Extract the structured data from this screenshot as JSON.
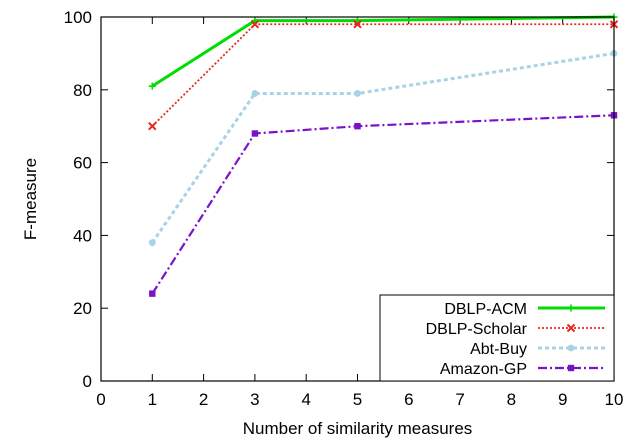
{
  "chart_data": {
    "type": "line",
    "xlabel": "Number of similarity measures",
    "ylabel": "F-measure",
    "xlim": [
      0,
      10
    ],
    "ylim": [
      0,
      100
    ],
    "xticks": [
      0,
      1,
      2,
      3,
      4,
      5,
      6,
      7,
      8,
      9,
      10
    ],
    "yticks": [
      0,
      20,
      40,
      60,
      80,
      100
    ],
    "grid": false,
    "legend_position": "bottom-right",
    "series": [
      {
        "name": "DBLP-ACM",
        "color": "#00dd00",
        "marker": "plus",
        "dash": "solid",
        "x": [
          1,
          3,
          5,
          10
        ],
        "y": [
          81,
          99,
          99,
          100
        ]
      },
      {
        "name": "DBLP-Scholar",
        "color": "#e8261c",
        "marker": "cross",
        "dash": "dotted",
        "x": [
          1,
          3,
          5,
          10
        ],
        "y": [
          70,
          98,
          98,
          98
        ]
      },
      {
        "name": "Abt-Buy",
        "color": "#a8d3e6",
        "marker": "circle",
        "dash": "dashed",
        "x": [
          1,
          3,
          5,
          10
        ],
        "y": [
          38,
          79,
          79,
          90
        ]
      },
      {
        "name": "Amazon-GP",
        "color": "#7b12c9",
        "marker": "square",
        "dash": "dashdot",
        "x": [
          1,
          3,
          5,
          10
        ],
        "y": [
          24,
          68,
          70,
          73
        ]
      }
    ]
  }
}
